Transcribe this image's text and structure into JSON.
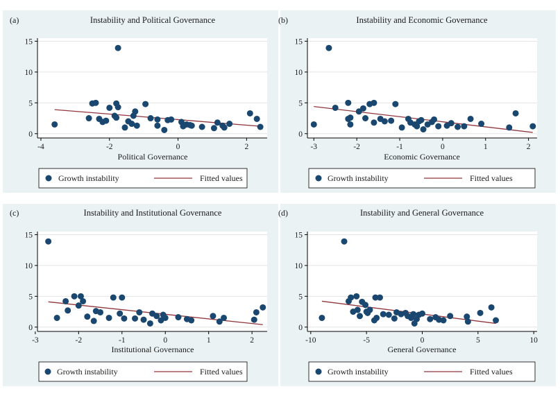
{
  "colors": {
    "marker": "#1a476f",
    "fit_line": "#90353b",
    "plot_bg": "#ffffff",
    "gridline": "#e3e3e3",
    "legend_border": "#000000",
    "outer_bg": "#eaf2f3"
  },
  "chart_data": [
    {
      "type": "scatter",
      "panel_label": "(a)",
      "title": "Instability and Political Governance",
      "xlabel": "Political Governance",
      "ylabel": "",
      "xlim": [
        -4.1,
        2.6
      ],
      "ylim": [
        -0.7,
        15.5
      ],
      "x_ticks": [
        -4,
        -2,
        0,
        2
      ],
      "x_tick_labels": [
        "-4",
        "-2",
        "0",
        "2"
      ],
      "y_ticks": [
        0,
        5,
        10,
        15
      ],
      "y_tick_labels": [
        "0",
        "5",
        "10",
        "15"
      ],
      "grid": true,
      "legend": [
        "Growth instability",
        "Fitted values"
      ],
      "series": [
        {
          "name": "Growth instability",
          "type": "scatter",
          "points": [
            [
              -3.6,
              1.5
            ],
            [
              -2.6,
              2.5
            ],
            [
              -2.5,
              4.9
            ],
            [
              -2.4,
              5.0
            ],
            [
              -2.3,
              2.4
            ],
            [
              -2.2,
              1.9
            ],
            [
              -2.1,
              2.1
            ],
            [
              -2.0,
              4.2
            ],
            [
              -1.85,
              2.9
            ],
            [
              -1.8,
              4.9
            ],
            [
              -1.75,
              4.3
            ],
            [
              -1.8,
              2.6
            ],
            [
              -1.75,
              13.9
            ],
            [
              -1.55,
              1.0
            ],
            [
              -1.45,
              2.0
            ],
            [
              -1.35,
              1.6
            ],
            [
              -1.3,
              2.9
            ],
            [
              -1.25,
              3.6
            ],
            [
              -1.2,
              1.3
            ],
            [
              -0.95,
              4.8
            ],
            [
              -0.8,
              2.5
            ],
            [
              -0.6,
              1.3
            ],
            [
              -0.6,
              2.3
            ],
            [
              -0.4,
              0.6
            ],
            [
              -0.3,
              2.2
            ],
            [
              -0.2,
              2.3
            ],
            [
              0.1,
              1.9
            ],
            [
              0.15,
              1.2
            ],
            [
              0.25,
              1.5
            ],
            [
              0.35,
              1.4
            ],
            [
              0.4,
              1.3
            ],
            [
              0.7,
              1.1
            ],
            [
              1.05,
              0.9
            ],
            [
              1.15,
              1.8
            ],
            [
              1.3,
              1.3
            ],
            [
              1.35,
              1.0
            ],
            [
              1.5,
              1.6
            ],
            [
              2.1,
              3.3
            ],
            [
              2.3,
              2.4
            ],
            [
              2.4,
              1.1
            ]
          ]
        },
        {
          "name": "Fitted values",
          "type": "line",
          "points": [
            [
              -3.6,
              3.9
            ],
            [
              2.4,
              1.2
            ]
          ]
        }
      ]
    },
    {
      "type": "scatter",
      "panel_label": "(b)",
      "title": "Instability and Economic Governance",
      "xlabel": "Economic Governance",
      "ylabel": "",
      "xlim": [
        -3.15,
        2.2
      ],
      "ylim": [
        -0.7,
        15.5
      ],
      "x_ticks": [
        -3,
        -2,
        -1,
        0,
        1,
        2
      ],
      "x_tick_labels": [
        "-3",
        "-2",
        "-1",
        "0",
        "1",
        "2"
      ],
      "y_ticks": [
        0,
        5,
        10,
        15
      ],
      "y_tick_labels": [
        "0",
        "5",
        "10",
        "15"
      ],
      "grid": true,
      "legend": [
        "Growth instability",
        "Fitted values"
      ],
      "series": [
        {
          "name": "Growth instability",
          "type": "scatter",
          "points": [
            [
              -3.0,
              1.5
            ],
            [
              -2.65,
              13.9
            ],
            [
              -2.5,
              4.2
            ],
            [
              -2.2,
              5.0
            ],
            [
              -2.2,
              2.4
            ],
            [
              -2.15,
              2.6
            ],
            [
              -2.15,
              1.5
            ],
            [
              -1.95,
              3.6
            ],
            [
              -1.85,
              4.1
            ],
            [
              -1.8,
              2.5
            ],
            [
              -1.7,
              4.8
            ],
            [
              -1.6,
              5.0
            ],
            [
              -1.6,
              1.8
            ],
            [
              -1.45,
              2.4
            ],
            [
              -1.35,
              2.0
            ],
            [
              -1.2,
              2.1
            ],
            [
              -1.1,
              4.8
            ],
            [
              -0.95,
              1.0
            ],
            [
              -0.8,
              2.4
            ],
            [
              -0.75,
              1.8
            ],
            [
              -0.65,
              1.5
            ],
            [
              -0.6,
              1.2
            ],
            [
              -0.55,
              2.0
            ],
            [
              -0.5,
              2.2
            ],
            [
              -0.45,
              0.7
            ],
            [
              -0.35,
              1.5
            ],
            [
              -0.25,
              1.9
            ],
            [
              -0.2,
              2.3
            ],
            [
              -0.1,
              1.2
            ],
            [
              0.1,
              1.3
            ],
            [
              0.2,
              1.7
            ],
            [
              0.35,
              1.1
            ],
            [
              0.5,
              1.2
            ],
            [
              0.65,
              2.4
            ],
            [
              0.9,
              1.6
            ],
            [
              1.55,
              1.0
            ],
            [
              1.7,
              3.3
            ],
            [
              2.1,
              1.2
            ]
          ]
        },
        {
          "name": "Fitted values",
          "type": "line",
          "points": [
            [
              -3.0,
              4.4
            ],
            [
              2.1,
              0.2
            ]
          ]
        }
      ]
    },
    {
      "type": "scatter",
      "panel_label": "(c)",
      "title": "Instability and Institutional Governance",
      "xlabel": "Institutional Governance",
      "ylabel": "",
      "xlim": [
        -2.95,
        2.35
      ],
      "ylim": [
        -0.7,
        15.5
      ],
      "x_ticks": [
        -3,
        -2,
        -1,
        0,
        1,
        2
      ],
      "x_tick_labels": [
        "-3",
        "-2",
        "-1",
        "0",
        "1",
        "2"
      ],
      "y_ticks": [
        0,
        5,
        10,
        15
      ],
      "y_tick_labels": [
        "0",
        "5",
        "10",
        "15"
      ],
      "grid": true,
      "legend": [
        "Growth instability",
        "Fitted values"
      ],
      "series": [
        {
          "name": "Growth instability",
          "type": "scatter",
          "points": [
            [
              -2.7,
              13.9
            ],
            [
              -2.5,
              1.5
            ],
            [
              -2.3,
              4.2
            ],
            [
              -2.25,
              2.7
            ],
            [
              -2.1,
              5.0
            ],
            [
              -2.0,
              3.5
            ],
            [
              -1.95,
              5.0
            ],
            [
              -1.9,
              4.2
            ],
            [
              -1.8,
              1.7
            ],
            [
              -1.65,
              1.0
            ],
            [
              -1.6,
              2.6
            ],
            [
              -1.5,
              2.4
            ],
            [
              -1.3,
              1.5
            ],
            [
              -1.2,
              4.8
            ],
            [
              -1.05,
              2.2
            ],
            [
              -1.0,
              4.8
            ],
            [
              -0.95,
              1.4
            ],
            [
              -0.7,
              1.4
            ],
            [
              -0.6,
              2.4
            ],
            [
              -0.5,
              1.2
            ],
            [
              -0.35,
              0.6
            ],
            [
              -0.3,
              2.2
            ],
            [
              -0.2,
              1.8
            ],
            [
              -0.1,
              1.1
            ],
            [
              -0.05,
              2.0
            ],
            [
              0.0,
              1.5
            ],
            [
              0.3,
              1.6
            ],
            [
              0.5,
              1.3
            ],
            [
              0.6,
              1.1
            ],
            [
              1.1,
              1.8
            ],
            [
              1.25,
              0.9
            ],
            [
              1.35,
              1.5
            ],
            [
              2.05,
              1.2
            ],
            [
              2.1,
              2.4
            ],
            [
              2.25,
              3.2
            ]
          ]
        },
        {
          "name": "Fitted values",
          "type": "line",
          "points": [
            [
              -2.7,
              4.1
            ],
            [
              2.25,
              0.4
            ]
          ]
        }
      ]
    },
    {
      "type": "scatter",
      "panel_label": "(d)",
      "title": "Instability and General Governance",
      "xlabel": "General Governance",
      "ylabel": "",
      "xlim": [
        -10.3,
        10.3
      ],
      "ylim": [
        -0.7,
        15.5
      ],
      "x_ticks": [
        -10,
        -5,
        0,
        5,
        10
      ],
      "x_tick_labels": [
        "-10",
        "-5",
        "0",
        "5",
        "10"
      ],
      "y_ticks": [
        0,
        5,
        10,
        15
      ],
      "y_tick_labels": [
        "0",
        "5",
        "10",
        "15"
      ],
      "grid": true,
      "legend": [
        "Growth instability",
        "Fitted values"
      ],
      "series": [
        {
          "name": "Growth instability",
          "type": "scatter",
          "points": [
            [
              -9.0,
              1.5
            ],
            [
              -7.0,
              13.9
            ],
            [
              -6.6,
              4.2
            ],
            [
              -6.4,
              4.8
            ],
            [
              -6.2,
              2.5
            ],
            [
              -5.9,
              5.0
            ],
            [
              -5.8,
              2.8
            ],
            [
              -5.6,
              1.8
            ],
            [
              -5.4,
              4.1
            ],
            [
              -5.1,
              3.6
            ],
            [
              -5.0,
              2.5
            ],
            [
              -4.9,
              2.3
            ],
            [
              -4.7,
              2.8
            ],
            [
              -4.3,
              1.1
            ],
            [
              -4.2,
              4.8
            ],
            [
              -4.1,
              1.5
            ],
            [
              -3.8,
              4.8
            ],
            [
              -3.5,
              2.1
            ],
            [
              -3.0,
              2.0
            ],
            [
              -2.5,
              1.4
            ],
            [
              -2.3,
              2.4
            ],
            [
              -1.9,
              2.1
            ],
            [
              -1.5,
              2.3
            ],
            [
              -1.3,
              1.8
            ],
            [
              -1.0,
              1.5
            ],
            [
              -0.8,
              2.1
            ],
            [
              -0.7,
              0.6
            ],
            [
              -0.5,
              1.3
            ],
            [
              -0.3,
              2.0
            ],
            [
              0.0,
              2.2
            ],
            [
              0.7,
              1.3
            ],
            [
              1.2,
              1.6
            ],
            [
              1.5,
              1.2
            ],
            [
              1.9,
              1.1
            ],
            [
              2.5,
              1.8
            ],
            [
              4.0,
              1.7
            ],
            [
              4.1,
              0.9
            ],
            [
              5.2,
              2.3
            ],
            [
              6.2,
              3.2
            ],
            [
              6.6,
              1.1
            ]
          ]
        },
        {
          "name": "Fitted values",
          "type": "line",
          "points": [
            [
              -9.0,
              4.2
            ],
            [
              6.6,
              0.6
            ]
          ]
        }
      ]
    }
  ]
}
